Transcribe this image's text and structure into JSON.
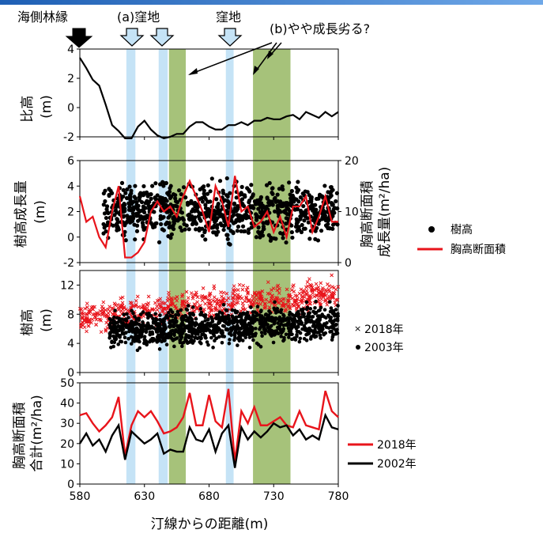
{
  "annotations": {
    "seaside_edge": "海側林縁",
    "depression_a": "(a)窪地",
    "depression": "窪地",
    "growth_note": "(b)やや成長劣る?"
  },
  "colors": {
    "depression_band": "#c5e3f6",
    "green_band": "#a6c27a",
    "red": "#e8141b",
    "black": "#000000",
    "arrow_fill": "#c5e3f6"
  },
  "chart_data": [
    {
      "type": "line",
      "xlim": [
        580,
        780
      ],
      "ylim": [
        -2,
        4
      ],
      "yticks": [
        "4",
        "2",
        "0",
        "-2"
      ],
      "ylabel": "比高\n(m)",
      "x": [
        580,
        585,
        590,
        595,
        600,
        605,
        610,
        615,
        620,
        625,
        630,
        635,
        640,
        645,
        650,
        655,
        660,
        665,
        670,
        675,
        680,
        685,
        690,
        695,
        700,
        705,
        710,
        715,
        720,
        725,
        730,
        735,
        740,
        745,
        750,
        755,
        760,
        765,
        770,
        775,
        780
      ],
      "values": [
        3.4,
        2.7,
        1.9,
        1.5,
        0.2,
        -1.2,
        -1.6,
        -2.1,
        -2.1,
        -1.3,
        -0.9,
        -1.5,
        -1.9,
        -2.1,
        -2.0,
        -1.8,
        -1.8,
        -1.3,
        -1.0,
        -1.0,
        -1.3,
        -1.5,
        -1.5,
        -1.2,
        -1.2,
        -1.0,
        -1.2,
        -0.9,
        -0.9,
        -0.7,
        -0.8,
        -0.8,
        -0.6,
        -0.5,
        -0.8,
        -0.3,
        -0.5,
        -0.7,
        -0.3,
        -0.6,
        -0.3
      ]
    },
    {
      "type": "scatter",
      "xlim": [
        580,
        780
      ],
      "ylim": [
        -2,
        6
      ],
      "yticks": [
        "6",
        "4",
        "2",
        "0",
        "-2"
      ],
      "y2lim": [
        0,
        20
      ],
      "y2ticks": [
        "20",
        "10",
        "0"
      ],
      "ylabel": "樹高成長量\n(m)",
      "y2label": "胸高断面積\n成長量(m²/ha)",
      "legend": [
        "樹高",
        "胸高断面積"
      ],
      "scatter_range": [
        -1,
        5
      ],
      "line_x": [
        580,
        585,
        590,
        595,
        600,
        605,
        610,
        615,
        620,
        625,
        630,
        635,
        640,
        645,
        650,
        655,
        660,
        665,
        670,
        675,
        680,
        685,
        690,
        695,
        700,
        705,
        710,
        715,
        720,
        725,
        730,
        735,
        740,
        745,
        750,
        755,
        760,
        765,
        770,
        775,
        780
      ],
      "line_values": [
        13,
        8,
        9,
        5,
        3,
        10,
        15,
        1,
        1,
        2,
        4,
        10,
        12,
        10,
        11,
        9,
        13,
        16,
        13,
        10,
        6,
        15,
        12,
        7,
        17,
        10,
        11,
        7,
        8,
        10,
        6,
        9,
        5,
        11,
        11,
        13,
        6,
        9,
        13,
        8,
        8
      ]
    },
    {
      "type": "scatter",
      "xlim": [
        580,
        780
      ],
      "ylim": [
        0,
        14
      ],
      "yticks": [
        "12",
        "8",
        "4",
        "0"
      ],
      "ylabel": "樹高\n(m)",
      "legend": [
        "2018年",
        "2003年"
      ],
      "series": [
        {
          "name": "2018年",
          "marker": "x",
          "mean_at_start": 7.5,
          "mean_at_end": 11
        },
        {
          "name": "2003年",
          "marker": "dot",
          "mean_at_start": 5.5,
          "mean_at_end": 7
        }
      ]
    },
    {
      "type": "line",
      "xlim": [
        580,
        780
      ],
      "ylim": [
        0,
        50
      ],
      "yticks": [
        "50",
        "40",
        "30",
        "20",
        "10",
        "0"
      ],
      "xticks": [
        "580",
        "630",
        "680",
        "730",
        "780"
      ],
      "xlabel": "汀線からの距離(m)",
      "ylabel": "胸高断面積\n合計(m²/ha)",
      "series": [
        {
          "name": "2018年",
          "x": [
            580,
            585,
            590,
            595,
            600,
            605,
            610,
            615,
            620,
            625,
            630,
            635,
            640,
            645,
            650,
            655,
            660,
            665,
            670,
            675,
            680,
            685,
            690,
            695,
            700,
            705,
            710,
            715,
            720,
            725,
            730,
            735,
            740,
            745,
            750,
            755,
            760,
            765,
            770,
            775,
            780
          ],
          "values": [
            34,
            35,
            30,
            26,
            29,
            33,
            43,
            14,
            29,
            36,
            33,
            36,
            31,
            25,
            26,
            28,
            33,
            45,
            29,
            29,
            44,
            31,
            28,
            47,
            11,
            36,
            30,
            38,
            29,
            29,
            31,
            33,
            29,
            28,
            36,
            29,
            28,
            27,
            46,
            36,
            33
          ]
        },
        {
          "name": "2002年",
          "x": [
            580,
            585,
            590,
            595,
            600,
            605,
            610,
            615,
            620,
            625,
            630,
            635,
            640,
            645,
            650,
            655,
            660,
            665,
            670,
            675,
            680,
            685,
            690,
            695,
            700,
            705,
            710,
            715,
            720,
            725,
            730,
            735,
            740,
            745,
            750,
            755,
            760,
            765,
            770,
            775,
            780
          ],
          "values": [
            20,
            25,
            19,
            22,
            16,
            24,
            29,
            12,
            26,
            23,
            20,
            22,
            25,
            15,
            17,
            16,
            16,
            28,
            22,
            21,
            27,
            16,
            25,
            29,
            8,
            28,
            22,
            26,
            23,
            26,
            30,
            28,
            29,
            24,
            27,
            22,
            24,
            22,
            34,
            28,
            27
          ]
        }
      ]
    }
  ]
}
